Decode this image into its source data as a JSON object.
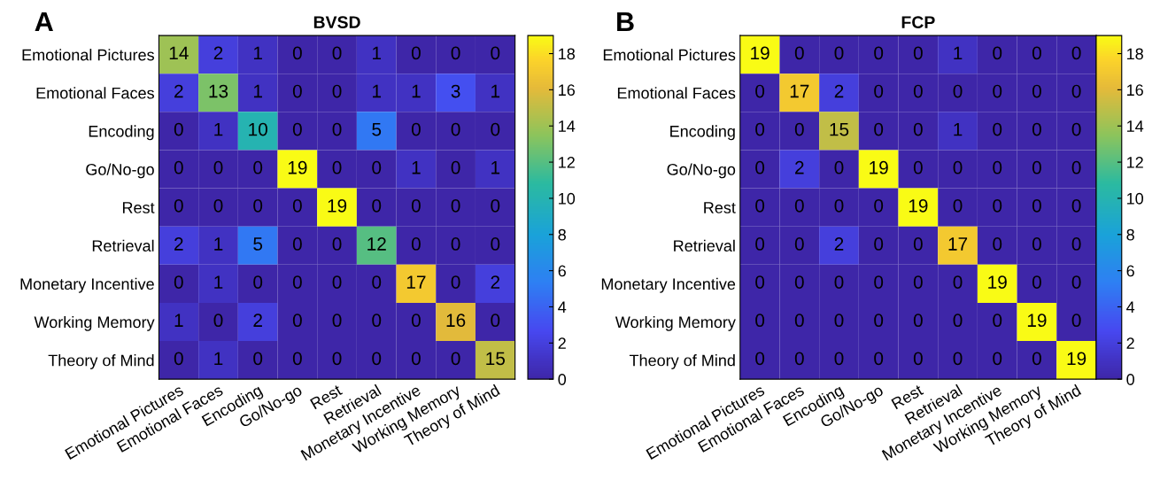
{
  "chart_data": [
    {
      "type": "heatmap",
      "title": "BVSD",
      "annotations": [
        "A"
      ],
      "data_labels": true,
      "clim": [
        0,
        19
      ],
      "cticks": [
        0,
        2,
        4,
        6,
        8,
        10,
        12,
        14,
        16,
        18
      ],
      "categories": [
        "Emotional Pictures",
        "Emotional Faces",
        "Encoding",
        "Go/No-go",
        "Rest",
        "Retrieval",
        "Monetary Incentive",
        "Working Memory",
        "Theory of Mind"
      ],
      "y_categories": [
        "Emotional Pictures",
        "Emotional Faces",
        "Encoding",
        "Go/No-go",
        "Rest",
        "Retrieval",
        "Monetary Incentive",
        "Working Memory",
        "Theory of Mind"
      ],
      "cells": [
        [
          14,
          2,
          1,
          0,
          0,
          1,
          0,
          0,
          0
        ],
        [
          2,
          13,
          1,
          0,
          0,
          1,
          1,
          3,
          1
        ],
        [
          0,
          1,
          10,
          0,
          0,
          5,
          0,
          0,
          0
        ],
        [
          0,
          0,
          0,
          19,
          0,
          0,
          1,
          0,
          1
        ],
        [
          0,
          0,
          0,
          0,
          19,
          0,
          0,
          0,
          0
        ],
        [
          2,
          1,
          5,
          0,
          0,
          12,
          0,
          0,
          0
        ],
        [
          0,
          1,
          0,
          0,
          0,
          0,
          17,
          0,
          2
        ],
        [
          1,
          0,
          2,
          0,
          0,
          0,
          0,
          16,
          0
        ],
        [
          0,
          1,
          0,
          0,
          0,
          0,
          0,
          0,
          15
        ]
      ]
    },
    {
      "type": "heatmap",
      "title": "FCP",
      "annotations": [
        "B"
      ],
      "data_labels": true,
      "clim": [
        0,
        19
      ],
      "cticks": [
        0,
        2,
        4,
        6,
        8,
        10,
        12,
        14,
        16,
        18
      ],
      "categories": [
        "Emotional Pictures",
        "Emotional Faces",
        "Encoding",
        "Go/No-go",
        "Rest",
        "Retrieval",
        "Monetary Incentive",
        "Working Memory",
        "Theory of Mind"
      ],
      "y_categories": [
        "Emotional Pictures",
        "Emotional Faces",
        "Encoding",
        "Go/No-go",
        "Rest",
        "Retrieval",
        "Monetary Incentive",
        "Working Memory",
        "Theory of Mind"
      ],
      "cells": [
        [
          19,
          0,
          0,
          0,
          0,
          1,
          0,
          0,
          0
        ],
        [
          0,
          17,
          2,
          0,
          0,
          0,
          0,
          0,
          0
        ],
        [
          0,
          0,
          15,
          0,
          0,
          1,
          0,
          0,
          0
        ],
        [
          0,
          2,
          0,
          19,
          0,
          0,
          0,
          0,
          0
        ],
        [
          0,
          0,
          0,
          0,
          19,
          0,
          0,
          0,
          0
        ],
        [
          0,
          0,
          2,
          0,
          0,
          17,
          0,
          0,
          0
        ],
        [
          0,
          0,
          0,
          0,
          0,
          0,
          19,
          0,
          0
        ],
        [
          0,
          0,
          0,
          0,
          0,
          0,
          0,
          19,
          0
        ],
        [
          0,
          0,
          0,
          0,
          0,
          0,
          0,
          0,
          19
        ]
      ]
    }
  ]
}
